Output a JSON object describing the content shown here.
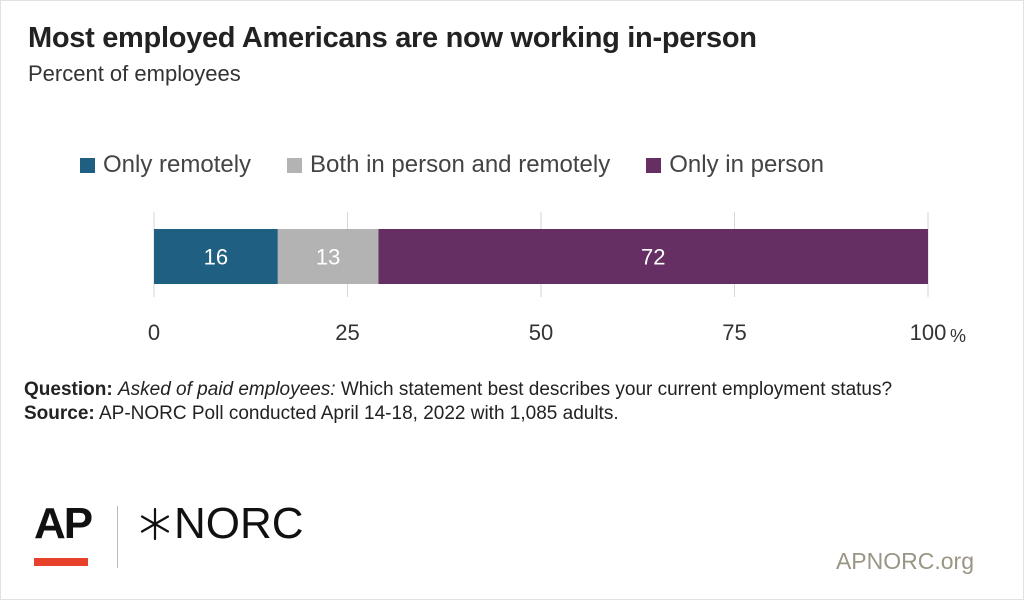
{
  "title": "Most employed Americans are now working in-person",
  "subtitle": "Percent of employees",
  "chart_data": {
    "type": "bar",
    "orientation": "horizontal-stacked",
    "title": "Most employed Americans are now working in-person",
    "subtitle": "Percent of employees",
    "categories": [
      ""
    ],
    "series": [
      {
        "name": "Only remotely",
        "values": [
          16
        ],
        "color": "#1f5f82"
      },
      {
        "name": "Both in person and remotely",
        "values": [
          13
        ],
        "color": "#b3b3b3"
      },
      {
        "name": "Only in person",
        "values": [
          72
        ],
        "color": "#662f63"
      }
    ],
    "xlim": [
      0,
      100
    ],
    "x_ticks": [
      "0",
      "25",
      "50",
      "75",
      "100"
    ],
    "x_tick_suffix": "%",
    "grid": true,
    "legend": "top"
  },
  "footnote": {
    "question_label": "Question:",
    "question_italic": "Asked of paid employees:",
    "question_text": "Which statement best describes your current employment status?",
    "source_label": "Source:",
    "source_text": "AP-NORC Poll conducted April 14-18, 2022 with 1,085 adults."
  },
  "logos": {
    "ap": "AP",
    "norc": "NORC",
    "ap_bar_color": "#e8412b",
    "norc_icon": "asterisk-star-icon"
  },
  "site": "APNORC.org"
}
